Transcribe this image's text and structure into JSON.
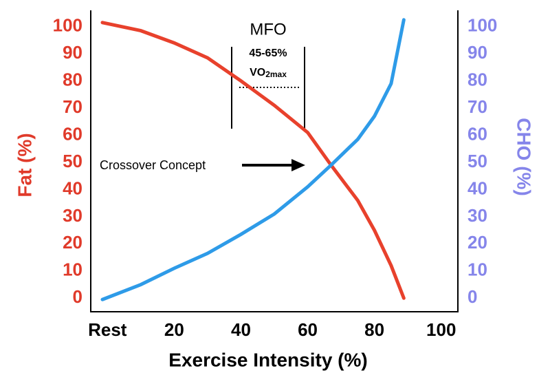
{
  "chart_data": {
    "type": "line",
    "x_label": "Exercise Intensity (%)",
    "y_label": "Fat (%)",
    "y2_label": "CHO (%)",
    "x": [
      -1.5,
      10,
      20,
      30,
      40,
      50,
      60,
      67,
      75,
      80,
      85,
      88.8
    ],
    "series": [
      {
        "name": "Fat",
        "color": "#e8412c",
        "values": [
          101.5,
          98.5,
          94,
          88.5,
          80,
          71,
          61,
          49,
          36,
          25,
          12,
          0
        ]
      },
      {
        "name": "CHO",
        "color": "#2e9be8",
        "axis": "y2",
        "values": [
          -0.5,
          5,
          11,
          16.5,
          23.5,
          31,
          41,
          49,
          58.5,
          67,
          79,
          102.5
        ]
      }
    ],
    "y_color": "#e03a2a",
    "y2_color": "#8585ea",
    "xlim": [
      -5,
      105
    ],
    "xticks": [
      {
        "value": 0,
        "label": "Rest"
      },
      20,
      40,
      60,
      80,
      100
    ],
    "ylim": [
      -5,
      106
    ],
    "yticks": [
      0,
      10,
      20,
      30,
      40,
      50,
      60,
      70,
      80,
      90,
      100
    ],
    "y2lim": [
      -5,
      106
    ],
    "y2ticks": [
      0,
      10,
      20,
      30,
      40,
      50,
      60,
      70,
      80,
      90,
      100
    ],
    "annotations": {
      "mfo": "MFO",
      "range": "45-65%",
      "vo2max_main": "VO",
      "vo2max_sub": "2max",
      "crossover": "Crossover Concept"
    }
  }
}
